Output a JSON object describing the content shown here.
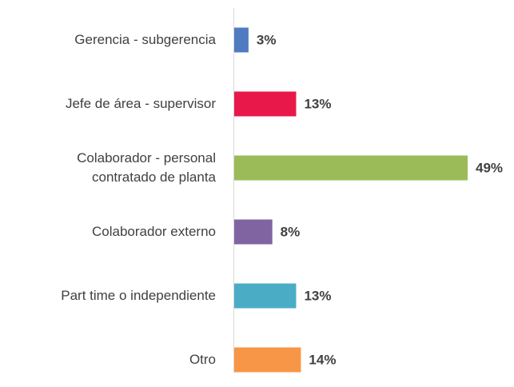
{
  "chart_data": {
    "type": "bar",
    "orientation": "horizontal",
    "categories": [
      "Gerencia - subgerencia",
      "Jefe de área - supervisor",
      "Colaborador - personal contratado de planta",
      "Colaborador externo",
      "Part time o independiente",
      "Otro"
    ],
    "values": [
      3,
      13,
      49,
      8,
      13,
      14
    ],
    "value_labels": [
      "3%",
      "13%",
      "49%",
      "8%",
      "13%",
      "14%"
    ],
    "colors": [
      "#4f7cc0",
      "#e8194a",
      "#9bbb59",
      "#8064a2",
      "#4bacc6",
      "#f79646"
    ]
  }
}
